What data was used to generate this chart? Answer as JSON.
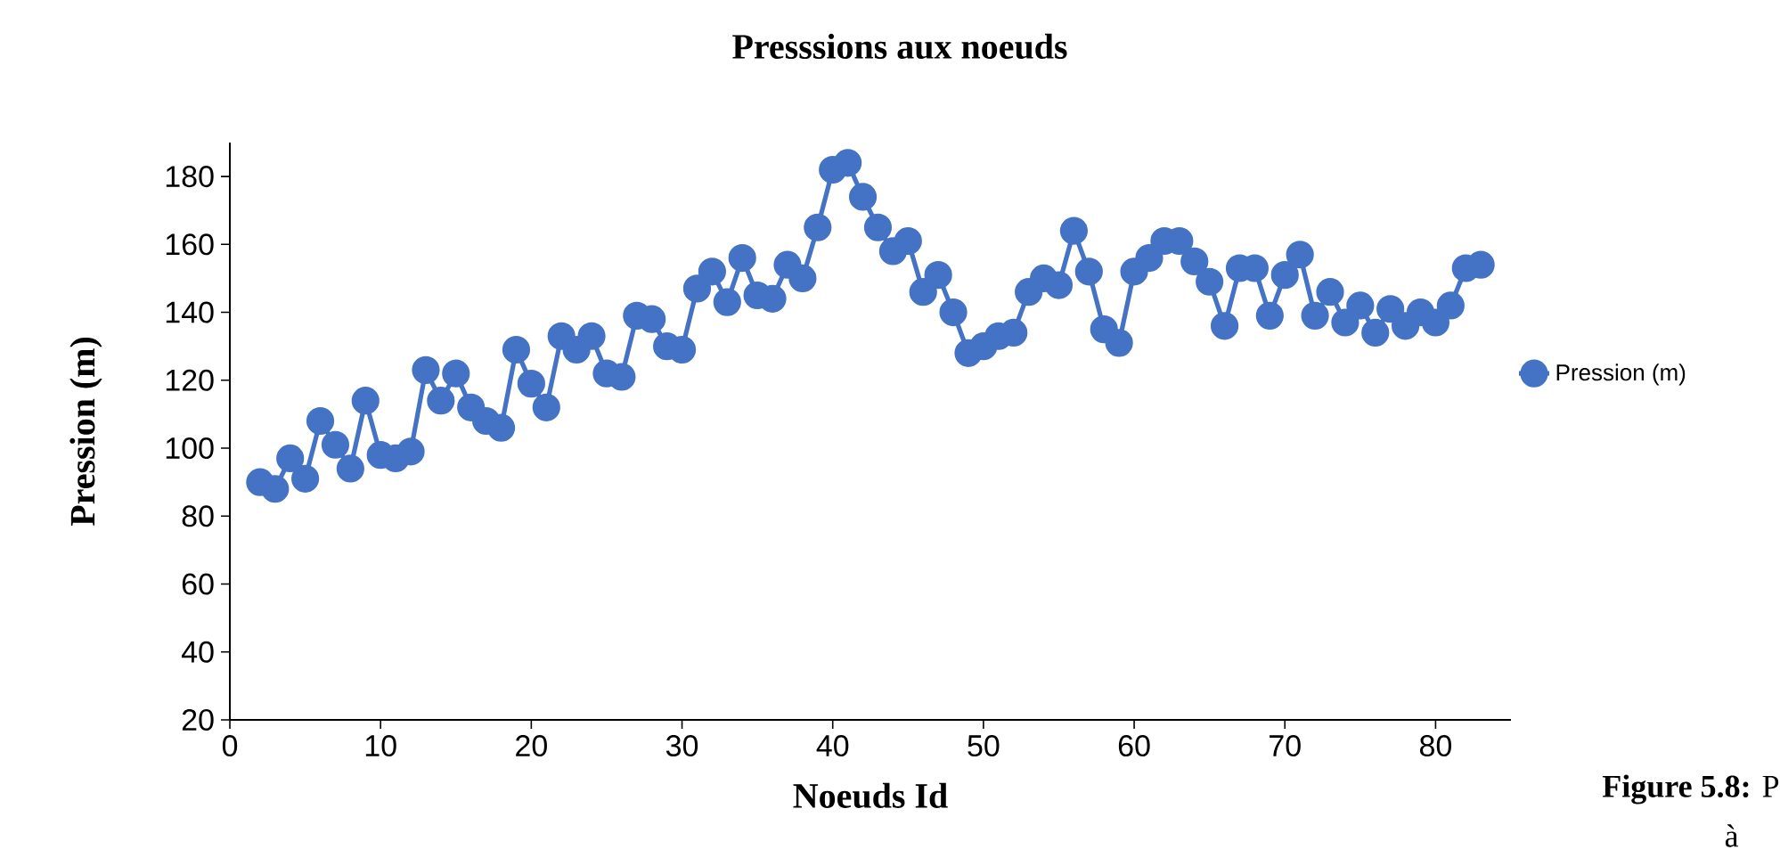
{
  "chart_data": {
    "type": "line",
    "title": "Presssions aux noeuds",
    "xlabel": "Noeuds Id",
    "ylabel": "Pression (m)",
    "annotations": [
      "**Figure 5.8:** P",
      "à"
    ],
    "xlim": [
      0,
      85
    ],
    "xticks": [
      0,
      10,
      20,
      30,
      40,
      50,
      60,
      70,
      80
    ],
    "ylim": [
      20,
      190
    ],
    "yticks": [
      20,
      40,
      60,
      80,
      100,
      120,
      140,
      160,
      180
    ],
    "grid": false,
    "legend": "right",
    "marker": "circle",
    "line_style": "solid",
    "x": [
      2,
      3,
      4,
      5,
      6,
      7,
      8,
      9,
      10,
      11,
      12,
      13,
      14,
      15,
      16,
      17,
      18,
      19,
      20,
      21,
      22,
      23,
      24,
      25,
      26,
      27,
      28,
      29,
      30,
      31,
      32,
      33,
      34,
      35,
      36,
      37,
      38,
      39,
      40,
      41,
      42,
      43,
      44,
      45,
      46,
      47,
      48,
      49,
      50,
      51,
      52,
      53,
      54,
      55,
      56,
      57,
      58,
      59,
      60,
      61,
      62,
      63,
      64,
      65,
      66,
      67,
      68,
      69,
      70,
      71,
      72,
      73,
      74,
      75,
      76,
      77,
      78,
      79,
      80,
      81,
      82,
      83
    ],
    "series": [
      {
        "name": "Pression (m)",
        "color": "#4472c4",
        "values": [
          90,
          88,
          97,
          91,
          108,
          101,
          94,
          114,
          98,
          97,
          99,
          123,
          114,
          122,
          112,
          108,
          106,
          129,
          119,
          112,
          133,
          129,
          133,
          122,
          121,
          139,
          138,
          130,
          129,
          147,
          152,
          143,
          156,
          145,
          144,
          154,
          150,
          165,
          182,
          184,
          174,
          165,
          158,
          161,
          146,
          151,
          140,
          128,
          130,
          133,
          134,
          146,
          150,
          148,
          164,
          152,
          135,
          131,
          152,
          156,
          161,
          161,
          155,
          149,
          136,
          153,
          153,
          139,
          151,
          157,
          139,
          146,
          137,
          142,
          134,
          141,
          136,
          140,
          137,
          142,
          153,
          154
        ]
      }
    ]
  }
}
